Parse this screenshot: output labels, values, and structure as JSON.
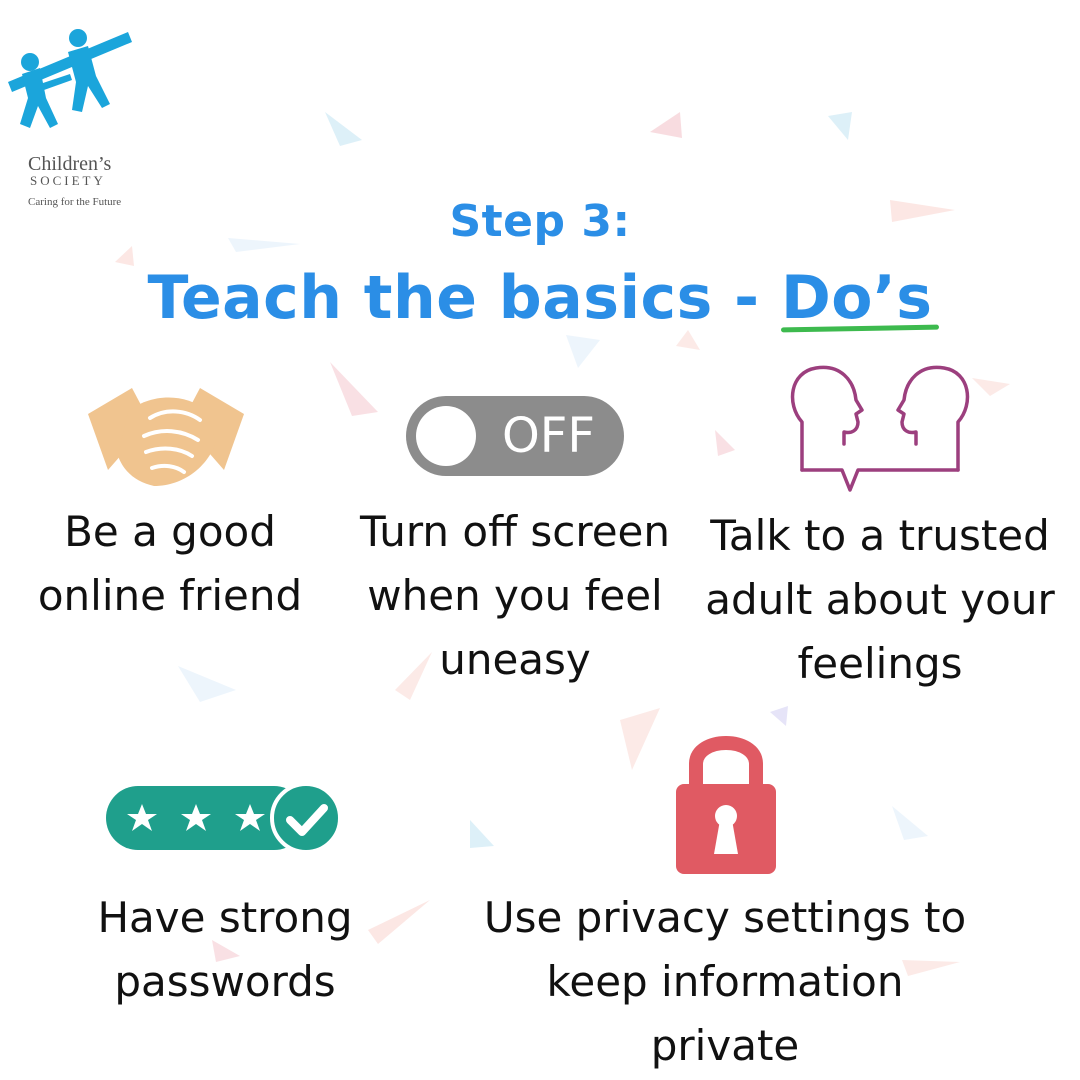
{
  "logo": {
    "name": "Children’s",
    "sub": "SOCIETY",
    "tagline": "Caring for the Future",
    "brand_color": "#1ba5db"
  },
  "heading": {
    "step": "Step 3:",
    "title_prefix": "Teach the basics - ",
    "title_highlight": "Do’s",
    "accent_color": "#2b8ee6",
    "underline_color": "#3dba4e"
  },
  "items": [
    {
      "icon": "handshake-icon",
      "label_line1": "Be a good",
      "label_line2": "online friend",
      "label_line3": ""
    },
    {
      "icon": "toggle-off-icon",
      "toggle_text": "OFF",
      "label_line1": "Turn off screen",
      "label_line2": "when you feel",
      "label_line3": "uneasy"
    },
    {
      "icon": "two-heads-talking-icon",
      "label_line1": "Talk to a trusted",
      "label_line2": "adult about your",
      "label_line3": "feelings"
    },
    {
      "icon": "password-stars-check-icon",
      "label_line1": "Have strong",
      "label_line2": "passwords",
      "label_line3": ""
    },
    {
      "icon": "padlock-icon",
      "label_line1": "Use privacy settings to",
      "label_line2": "keep information private",
      "label_line3": ""
    }
  ],
  "colors": {
    "handshake": "#f0c48f",
    "toggle": "#8c8c8c",
    "heads": "#9c3f7e",
    "password": "#1f9f8c",
    "padlock": "#e05a63"
  }
}
